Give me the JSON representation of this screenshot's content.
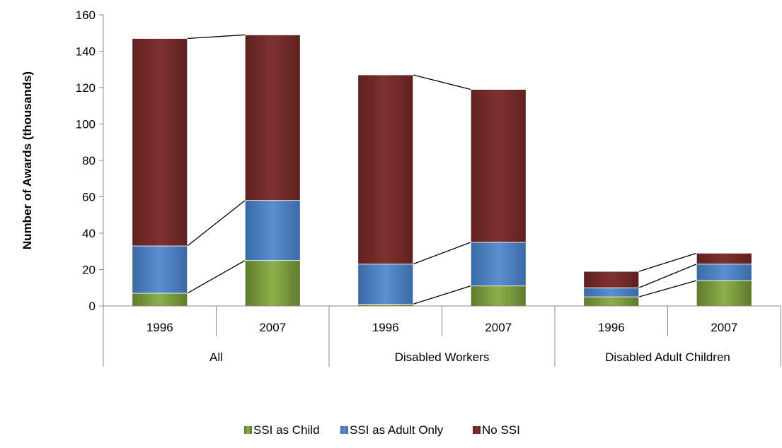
{
  "chart_data": {
    "type": "bar",
    "stacked": true,
    "categories": [
      {
        "group": "All",
        "year": "1996"
      },
      {
        "group": "All",
        "year": "2007"
      },
      {
        "group": "Disabled Workers",
        "year": "1996"
      },
      {
        "group": "Disabled Workers",
        "year": "2007"
      },
      {
        "group": "Disabled Adult Children",
        "year": "1996"
      },
      {
        "group": "Disabled Adult Children",
        "year": "2007"
      }
    ],
    "groups": [
      "All",
      "Disabled Workers",
      "Disabled Adult Children"
    ],
    "series": [
      {
        "name": "SSI as Child",
        "color": "#77933c",
        "values": [
          7,
          25,
          1,
          11,
          5,
          14
        ]
      },
      {
        "name": "SSI as Adult Only",
        "color": "#4f81bd",
        "values": [
          26,
          33,
          22,
          24,
          5,
          9
        ]
      },
      {
        "name": "No SSI",
        "color": "#772c2a",
        "values": [
          114,
          91,
          104,
          84,
          9,
          6
        ]
      }
    ],
    "ylabel": "Number of Awards (thousands)",
    "xlabel": "",
    "title": "",
    "ylim": [
      0,
      160
    ],
    "yticks": [
      0,
      20,
      40,
      60,
      80,
      100,
      120,
      140,
      160
    ],
    "grid": false,
    "legend": "bottom",
    "connector_lines": true
  }
}
